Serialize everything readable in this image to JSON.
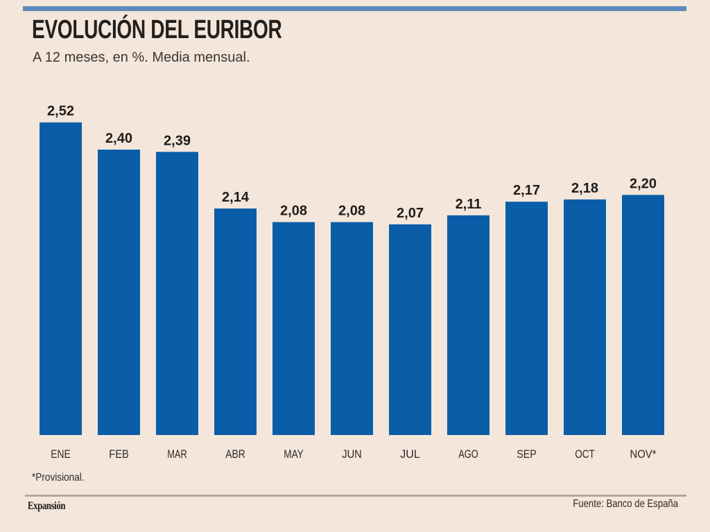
{
  "chart_data": {
    "type": "bar",
    "title": "EVOLUCIÓN DEL EURIBOR",
    "subtitle": "A 12 meses, en %. Media mensual.",
    "categories": [
      "ENE",
      "FEB",
      "MAR",
      "ABR",
      "MAY",
      "JUN",
      "JUL",
      "AGO",
      "SEP",
      "OCT",
      "NOV*"
    ],
    "values": [
      2.52,
      2.4,
      2.39,
      2.14,
      2.08,
      2.08,
      2.07,
      2.11,
      2.17,
      2.18,
      2.2
    ],
    "value_labels": [
      "2,52",
      "2,40",
      "2,39",
      "2,14",
      "2,08",
      "2,08",
      "2,07",
      "2,11",
      "2,17",
      "2,18",
      "2,20"
    ],
    "xlabel": "",
    "ylabel": "",
    "ylim": [
      1.14,
      2.52
    ],
    "grid": false,
    "bar_color": "#0a5ea8",
    "footnote": "*Provisional.",
    "source": "Fuente: Banco de España",
    "brand": "Expansión"
  }
}
